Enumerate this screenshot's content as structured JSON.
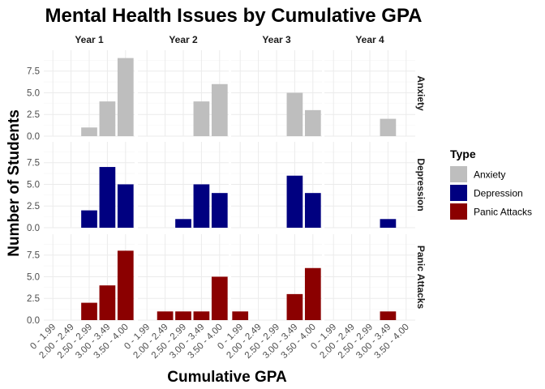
{
  "chart_data": {
    "type": "bar",
    "title": "Mental Health Issues by Cumulative GPA",
    "xlabel": "Cumulative GPA",
    "ylabel": "Number of Students",
    "categories": [
      "0 - 1.99",
      "2.00 - 2.49",
      "2.50 - 2.99",
      "3.00 - 3.49",
      "3.50 - 4.00"
    ],
    "columns": [
      "Year 1",
      "Year 2",
      "Year 3",
      "Year 4"
    ],
    "rows": [
      "Anxiety",
      "Depression",
      "Panic Attacks"
    ],
    "ylim": [
      0,
      9.9
    ],
    "yticks": [
      0,
      2.5,
      5,
      7.5
    ],
    "ytick_labels": [
      "0.0",
      "2.5",
      "5.0",
      "7.5"
    ],
    "grid": true,
    "legend": {
      "title": "Type",
      "position": "right",
      "entries": [
        "Anxiety",
        "Depression",
        "Panic Attacks"
      ]
    },
    "colors": {
      "Anxiety": "#bebebe",
      "Depression": "#000080",
      "Panic Attacks": "#8b0000"
    },
    "series": [
      {
        "name": "Anxiety",
        "values": {
          "Year 1": [
            0,
            0,
            1,
            4,
            9
          ],
          "Year 2": [
            0,
            0,
            0,
            4,
            6
          ],
          "Year 3": [
            0,
            0,
            0,
            5,
            3
          ],
          "Year 4": [
            0,
            0,
            0,
            2,
            0
          ]
        }
      },
      {
        "name": "Depression",
        "values": {
          "Year 1": [
            0,
            0,
            2,
            7,
            5
          ],
          "Year 2": [
            0,
            0,
            1,
            5,
            4
          ],
          "Year 3": [
            0,
            0,
            0,
            6,
            4
          ],
          "Year 4": [
            0,
            0,
            0,
            1,
            0
          ]
        }
      },
      {
        "name": "Panic Attacks",
        "values": {
          "Year 1": [
            0,
            0,
            2,
            4,
            8
          ],
          "Year 2": [
            0,
            1,
            1,
            1,
            5
          ],
          "Year 3": [
            1,
            0,
            0,
            3,
            6
          ],
          "Year 4": [
            0,
            0,
            0,
            1,
            0
          ]
        }
      }
    ]
  }
}
